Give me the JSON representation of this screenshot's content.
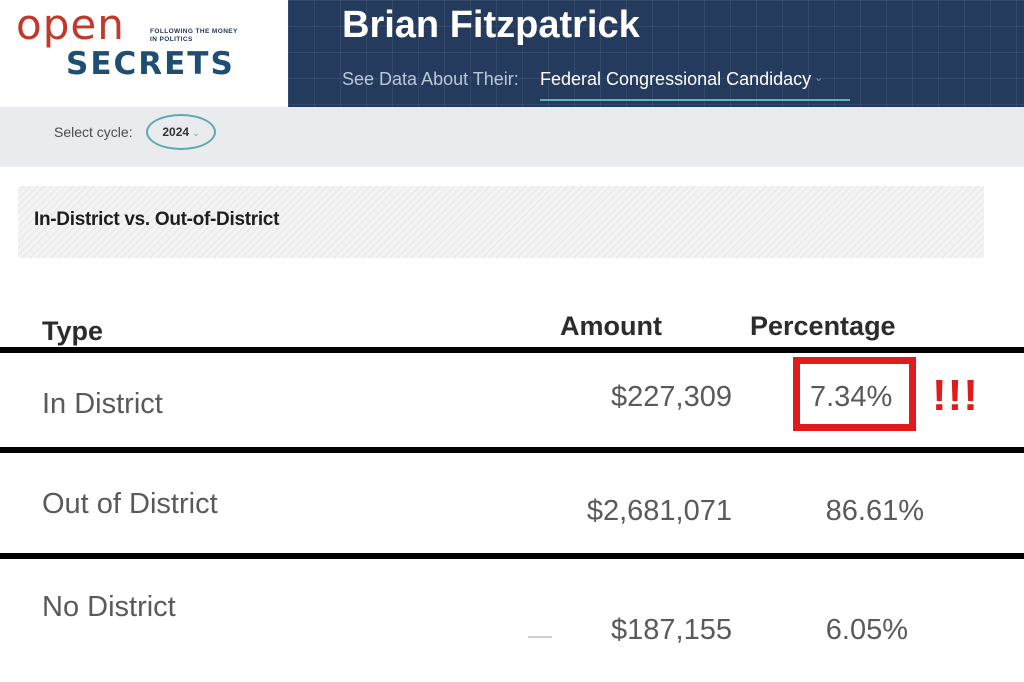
{
  "logo": {
    "open": "open",
    "secrets": "SECRETS",
    "tagline": "FOLLOWING THE MONEY IN POLITICS"
  },
  "header": {
    "candidate_name": "Brian Fitzpatrick",
    "see_data_label": "See Data About Their:",
    "candidacy_option": "Federal Congressional Candidacy",
    "candidacy_chevron_icon": "chevron-down-icon"
  },
  "cycle": {
    "label": "Select cycle:",
    "value": "2024",
    "chevron_icon": "chevron-down-icon"
  },
  "section": {
    "title": "In-District vs. Out-of-District"
  },
  "table": {
    "columns": [
      "Type",
      "Amount",
      "Percentage"
    ],
    "rows": [
      {
        "type": "In District",
        "amount": "$227,309",
        "percentage": "7.34%"
      },
      {
        "type": "Out of District",
        "amount": "$2,681,071",
        "percentage": "86.61%"
      },
      {
        "type": "No District",
        "amount": "$187,155",
        "percentage": "6.05%"
      }
    ]
  },
  "annotation": {
    "exclamation": "!!!",
    "highlight_color": "#e01b1b"
  },
  "colors": {
    "header_bg": "#243b5e",
    "logo_red": "#c0392b",
    "logo_navy": "#1f4e73",
    "accent_teal": "#5fb2be"
  }
}
